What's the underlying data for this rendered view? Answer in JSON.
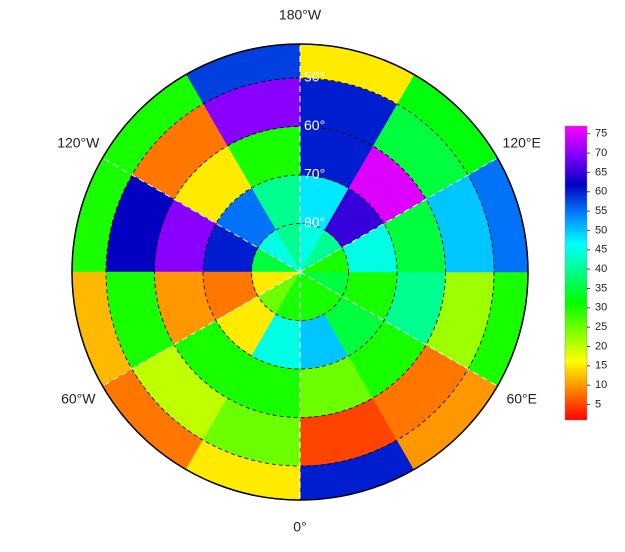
{
  "map": {
    "projection": "north polar stereographic",
    "lat_limit": [
      90,
      43
    ],
    "lat_edges": [
      90,
      80,
      70,
      60,
      50,
      43
    ],
    "lon_edges": [
      0,
      30,
      60,
      90,
      120,
      150,
      180,
      210,
      240,
      270,
      300,
      330,
      360
    ],
    "values": [
      [
        30,
        30,
        35,
        30,
        40,
        45,
        40,
        45,
        35,
        15,
        25,
        30
      ],
      [
        50,
        35,
        30,
        45,
        65,
        48,
        40,
        55,
        60,
        8,
        15,
        45
      ],
      [
        25,
        30,
        40,
        35,
        75,
        60,
        30,
        15,
        70,
        10,
        30,
        30
      ],
      [
        5,
        8,
        22,
        50,
        35,
        60,
        70,
        8,
        62,
        30,
        20,
        25
      ],
      [
        60,
        10,
        30,
        55,
        32,
        15,
        58,
        30,
        30,
        12,
        8,
        15
      ]
    ],
    "lon_labels": [
      {
        "value": 180,
        "label": "180°W"
      },
      {
        "value": -120,
        "label": "120°W"
      },
      {
        "value": 120,
        "label": "120°E"
      },
      {
        "value": -60,
        "label": "60°W"
      },
      {
        "value": 60,
        "label": "60°E"
      },
      {
        "value": 0,
        "label": "0°"
      }
    ],
    "lat_labels": [
      {
        "value": 50,
        "label": "50°"
      },
      {
        "value": 60,
        "label": "60°"
      },
      {
        "value": 70,
        "label": "70°"
      },
      {
        "value": 80,
        "label": "80°"
      }
    ],
    "colorbar": {
      "clim": [
        1,
        77
      ],
      "ticks": [
        5,
        10,
        15,
        20,
        25,
        30,
        35,
        40,
        45,
        50,
        55,
        60,
        65,
        70,
        75
      ],
      "colormap": [
        "#ff0000",
        "#ff8000",
        "#ffff00",
        "#80ff00",
        "#00ff00",
        "#00ff80",
        "#00ffff",
        "#0080ff",
        "#0000c0",
        "#8000ff",
        "#ff00ff"
      ]
    }
  }
}
